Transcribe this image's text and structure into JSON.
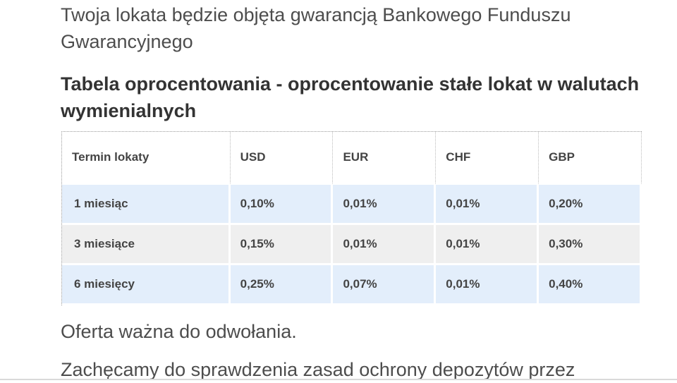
{
  "intro": {
    "text": "Twoja lokata będzie objęta gwarancją Bankowego Funduszu Gwarancyjnego"
  },
  "section": {
    "title": "Tabela oprocentowania - oprocentowanie stałe lokat w walutach wymienialnych"
  },
  "table": {
    "headers": [
      "Termin lokaty",
      "USD",
      "EUR",
      "CHF",
      "GBP"
    ],
    "rows": [
      [
        "1 miesiąc",
        "0,10%",
        "0,01%",
        "0,01%",
        "0,20%"
      ],
      [
        "3 miesiące",
        "0,15%",
        "0,01%",
        "0,01%",
        "0,30%"
      ],
      [
        "6 miesięcy",
        "0,25%",
        "0,07%",
        "0,01%",
        "0,40%"
      ]
    ],
    "row_colors": [
      "#e3eefb",
      "#efefef",
      "#e3eefb"
    ]
  },
  "notes": {
    "validity": "Oferta ważna do odwołania.",
    "encourage": "Zachęcamy do sprawdzenia zasad ochrony depozytów przez"
  }
}
